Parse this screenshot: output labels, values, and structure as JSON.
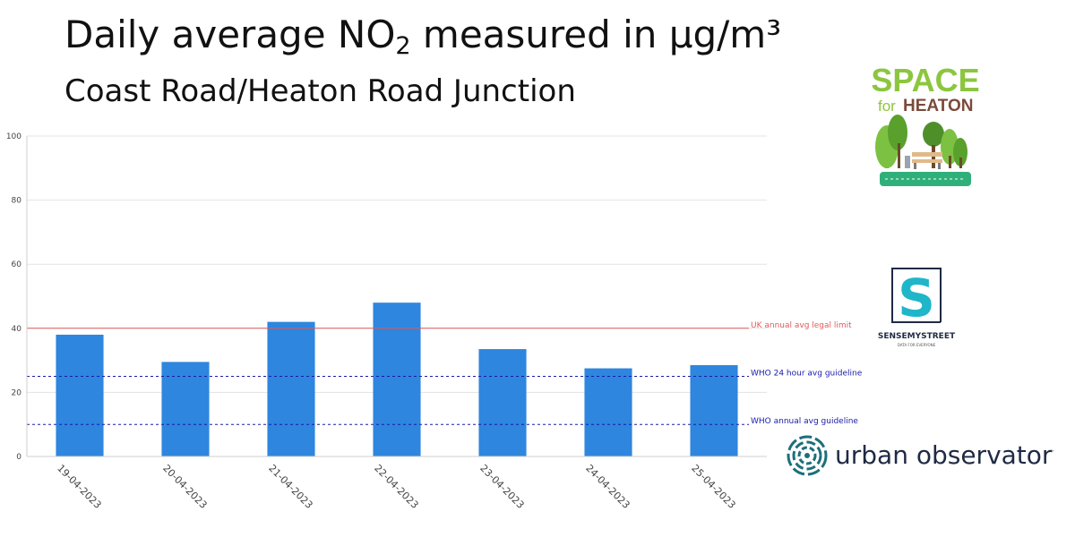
{
  "title": {
    "prefix": "Daily average NO",
    "subscript": "2",
    "suffix": " measured in μg/m³"
  },
  "subtitle": "Coast Road/Heaton Road Junction",
  "chart_data": {
    "type": "bar",
    "categories": [
      "19-04-2023",
      "20-04-2023",
      "21-04-2023",
      "22-04-2023",
      "23-04-2023",
      "24-04-2023",
      "25-04-2023"
    ],
    "values": [
      38,
      29.5,
      42,
      48,
      33.5,
      27.5,
      28.5
    ],
    "ylim": [
      0,
      100
    ],
    "yticks": [
      0,
      20,
      40,
      60,
      80,
      100
    ],
    "grid": true,
    "bar_color": "#2e86de",
    "reference_lines": [
      {
        "label": "UK annual avg legal limit",
        "value": 40,
        "style": "solid",
        "color": "#e05a5a"
      },
      {
        "label": "WHO 24 hour avg guideline",
        "value": 25,
        "style": "dashed",
        "color": "#1a1aa8"
      },
      {
        "label": "WHO annual avg guideline",
        "value": 10,
        "style": "dashed",
        "color": "#1a1aa8"
      }
    ]
  },
  "logos": {
    "space_for_heaton": {
      "line1": "SPACE",
      "line2_for": "for",
      "line2_heaton": "HEATON"
    },
    "sense_my_street": {
      "name": "SENSEMYSTREET",
      "tagline": "DATA FOR EVERYONE",
      "letter": "S"
    },
    "urban_observatory": {
      "name": "urban observatory"
    }
  },
  "colors": {
    "space_green": "#8cc63f",
    "heaton_brown": "#7b4a3a",
    "sense_teal": "#1fb6c9",
    "sense_navy": "#1f2a44",
    "urban_teal": "#1d6f7a"
  }
}
